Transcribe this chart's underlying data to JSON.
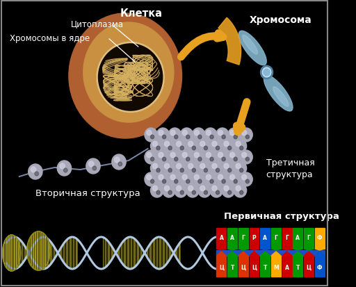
{
  "background_color": "#000000",
  "border_color": "#888888",
  "labels": {
    "kletka": "Клетка",
    "citoplazma": "Цитоплазма",
    "hromosomy": "Хромосомы в ядре",
    "hromosoma": "Хромосома",
    "tretichnaya": "Третичная\nструктура",
    "vtorichnaya": "Вторичная структура",
    "pervichnaya": "Первичная структура"
  },
  "label_color": "#ffffff",
  "arrow_color": "#e8a020",
  "cell_outer_color": "#b06030",
  "cell_inner_color": "#c89040",
  "nucleus_bg": "#110800",
  "nucleus_ring": "#e0c080",
  "dna_color": "#d4b060",
  "chrom_color": "#80b0c8",
  "chrom_center": "#a0c8e0",
  "sphere_color": "#a8a8b8",
  "sphere_hi": "#d0d0e0",
  "sphere_sh": "#404048",
  "helix_strand": "#b0c8e0",
  "helix_rung": "#c0b830",
  "helix_fill": "#d0c030",
  "helix_oval_fill": "#c8b828",
  "top_colors": [
    "#cc0000",
    "#009900",
    "#009900",
    "#cc0000",
    "#0055cc",
    "#009900",
    "#cc0000",
    "#009900",
    "#009900",
    "#ffaa00"
  ],
  "bot_colors": [
    "#dd3300",
    "#009900",
    "#dd3300",
    "#cc0000",
    "#009900",
    "#ffaa00",
    "#cc0000",
    "#009900",
    "#cc0000",
    "#0055cc"
  ],
  "nuc_labels_top": [
    "А",
    "А",
    "Г",
    "Р",
    "А",
    "Г",
    "Г",
    "А",
    "Г",
    "Ф"
  ],
  "nuc_labels_bot": [
    "Ц",
    "Т",
    "Ц",
    "Ц",
    "Т",
    "М",
    "А",
    "Т",
    "Ц",
    "Ф"
  ]
}
